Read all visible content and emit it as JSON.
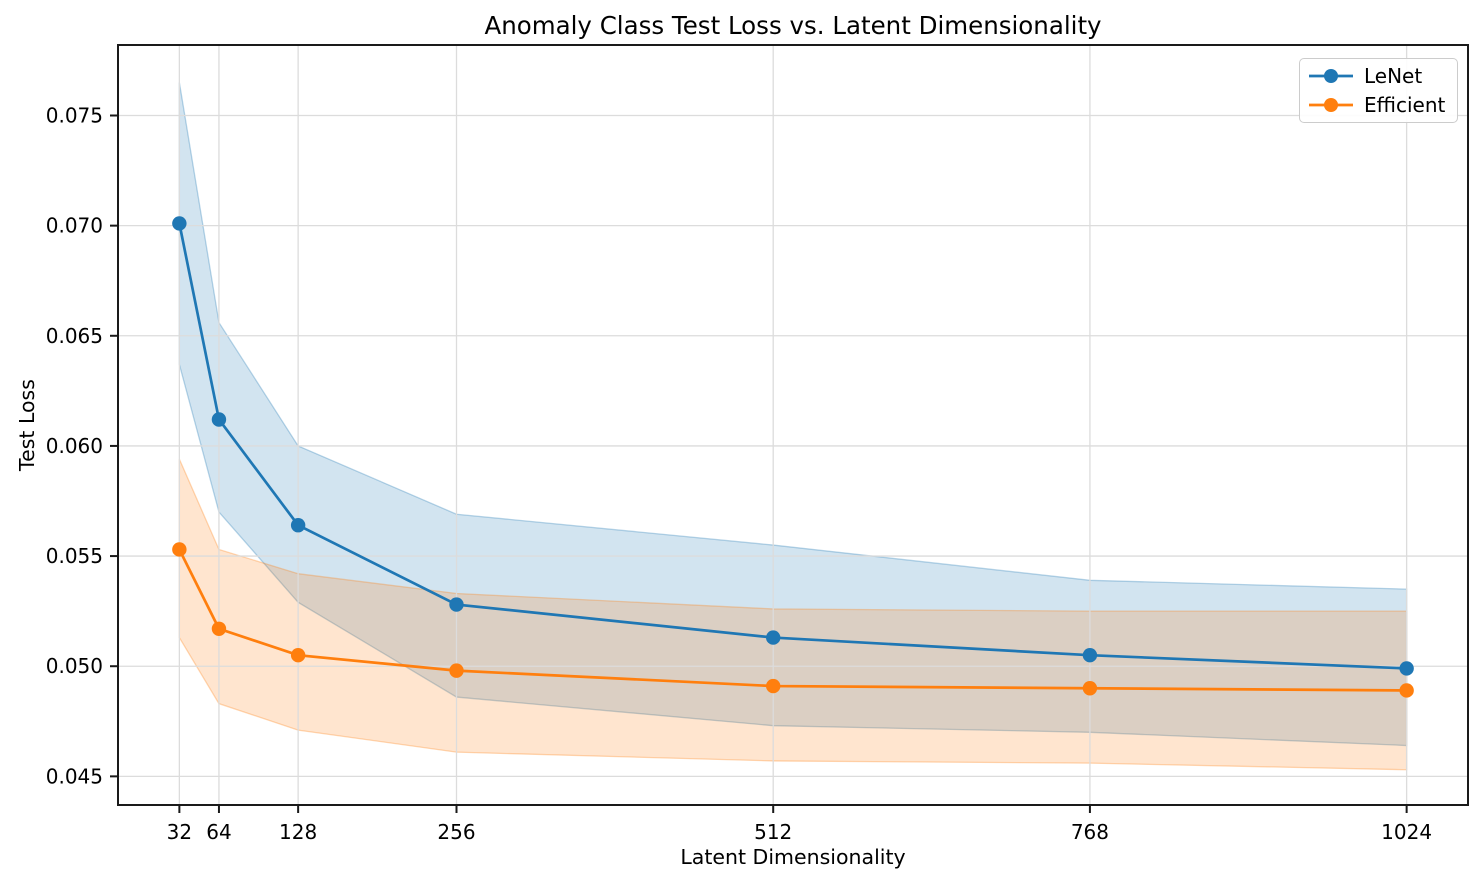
{
  "figure": {
    "background": "#ffffff"
  },
  "chart_data": {
    "type": "line",
    "title": "Anomaly Class Test Loss vs. Latent Dimensionality",
    "xlabel": "Latent Dimensionality",
    "ylabel": "Test Loss",
    "grid": true,
    "legend_position": "upper right",
    "band_alpha": 0.2,
    "x": [
      32,
      64,
      128,
      256,
      512,
      768,
      1024
    ],
    "x_tick_labels": [
      "32",
      "64",
      "128",
      "256",
      "512",
      "768",
      "1024"
    ],
    "y_ticks": [
      0.045,
      0.05,
      0.055,
      0.06,
      0.065,
      0.07,
      0.075
    ],
    "y_tick_labels": [
      "0.045",
      "0.050",
      "0.055",
      "0.060",
      "0.065",
      "0.070",
      "0.075"
    ],
    "xlim": [
      -17.6,
      1073.6
    ],
    "ylim": [
      0.0437,
      0.0782
    ],
    "series": [
      {
        "name": "LeNet",
        "color": "#1f77b4",
        "values": [
          0.0701,
          0.0612,
          0.0564,
          0.0528,
          0.0513,
          0.0505,
          0.0499
        ],
        "band_upper": [
          0.0765,
          0.0656,
          0.06,
          0.0569,
          0.0555,
          0.0539,
          0.0535
        ],
        "band_lower": [
          0.0637,
          0.057,
          0.0529,
          0.0486,
          0.0473,
          0.047,
          0.0464
        ]
      },
      {
        "name": "Efficient",
        "color": "#ff7f0e",
        "values": [
          0.0553,
          0.0517,
          0.0505,
          0.0498,
          0.0491,
          0.049,
          0.0489
        ],
        "band_upper": [
          0.0594,
          0.0553,
          0.0542,
          0.0533,
          0.0526,
          0.0525,
          0.0525
        ],
        "band_lower": [
          0.0513,
          0.0483,
          0.0471,
          0.0461,
          0.0457,
          0.0456,
          0.0453
        ]
      }
    ],
    "colors": {
      "grid": "#dcdcdc",
      "spine": "#1a1a1a",
      "tick_text": "#000000"
    }
  }
}
